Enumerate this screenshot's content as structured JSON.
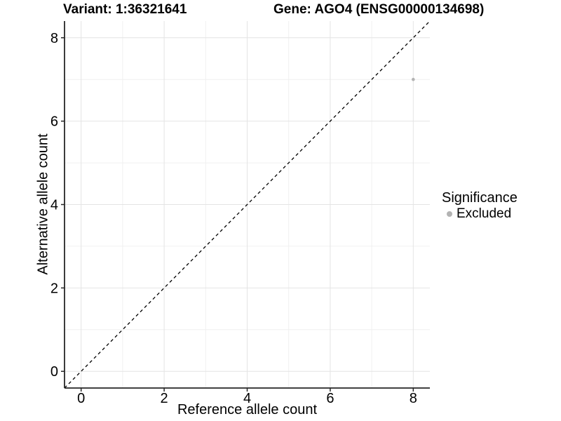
{
  "chart_data": {
    "type": "scatter",
    "title_left": "Variant: 1:36321641",
    "title_right": "Gene: AGO4 (ENSG00000134698)",
    "xlabel": "Reference allele count",
    "ylabel": "Alternative allele count",
    "xlim": [
      -0.4,
      8.4
    ],
    "ylim": [
      -0.4,
      8.4
    ],
    "x_ticks": [
      0,
      2,
      4,
      6,
      8
    ],
    "y_ticks": [
      0,
      2,
      4,
      6,
      8
    ],
    "x_minor_gridlines": [
      1,
      3,
      5,
      7
    ],
    "y_minor_gridlines": [
      1,
      3,
      5,
      7
    ],
    "grid": "major+minor",
    "points": [
      {
        "x": 8,
        "y": 7,
        "series": "Excluded",
        "color": "#b3b3b3"
      }
    ],
    "reference_line": {
      "type": "identity",
      "slope": 1,
      "intercept": 0,
      "style": "dashed",
      "color": "#000000"
    },
    "legend": {
      "title": "Significance",
      "position": "right",
      "entries": [
        {
          "label": "Excluded",
          "color": "#b3b3b3",
          "marker": "circle"
        }
      ]
    },
    "colors": {
      "background": "#ffffff",
      "grid_major": "#e4e4e4",
      "grid_minor": "#f0f0f0",
      "axis": "#262626",
      "text": "#000000"
    }
  }
}
